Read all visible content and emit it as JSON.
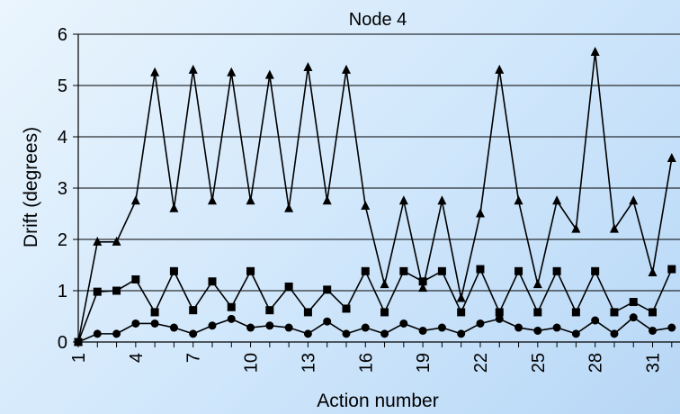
{
  "chart_data": {
    "type": "line",
    "title": "Node 4",
    "xlabel": "Action number",
    "ylabel": "Drift (degrees)",
    "ylim": [
      0,
      6
    ],
    "yticks": [
      0,
      1,
      2,
      3,
      4,
      5,
      6
    ],
    "xtick_labels": [
      "1",
      "4",
      "7",
      "10",
      "13",
      "16",
      "19",
      "22",
      "25",
      "28",
      "31"
    ],
    "xtick_values": [
      1,
      4,
      7,
      10,
      13,
      16,
      19,
      22,
      25,
      28,
      31
    ],
    "grid": "horizontal",
    "legend": "none",
    "x": [
      1,
      2,
      3,
      4,
      5,
      6,
      7,
      8,
      9,
      10,
      11,
      12,
      13,
      14,
      15,
      16,
      17,
      18,
      19,
      20,
      21,
      22,
      23,
      24,
      25,
      26,
      27,
      28,
      29,
      30,
      31,
      32
    ],
    "series": [
      {
        "marker": "triangle",
        "color": "#000000",
        "values": [
          0,
          1.95,
          1.95,
          2.75,
          5.25,
          2.6,
          5.3,
          2.75,
          5.25,
          2.75,
          5.2,
          2.6,
          5.35,
          2.75,
          5.3,
          2.65,
          1.12,
          2.75,
          1.05,
          2.75,
          0.85,
          2.5,
          5.3,
          2.75,
          1.12,
          2.75,
          2.2,
          5.65,
          2.2,
          2.75,
          1.35,
          3.58
        ]
      },
      {
        "marker": "square",
        "color": "#000000",
        "values": [
          0,
          0.98,
          1.0,
          1.22,
          0.58,
          1.38,
          0.62,
          1.18,
          0.68,
          1.38,
          0.62,
          1.08,
          0.58,
          1.02,
          0.65,
          1.38,
          0.58,
          1.38,
          1.18,
          1.38,
          0.58,
          1.42,
          0.58,
          1.38,
          0.58,
          1.38,
          0.58,
          1.38,
          0.58,
          0.78,
          0.58,
          1.42
        ]
      },
      {
        "marker": "circle",
        "color": "#000000",
        "values": [
          0,
          0.16,
          0.16,
          0.36,
          0.36,
          0.28,
          0.16,
          0.32,
          0.45,
          0.28,
          0.32,
          0.28,
          0.16,
          0.4,
          0.16,
          0.28,
          0.16,
          0.36,
          0.22,
          0.28,
          0.16,
          0.36,
          0.45,
          0.28,
          0.22,
          0.28,
          0.16,
          0.42,
          0.16,
          0.48,
          0.22,
          0.28
        ]
      }
    ]
  }
}
